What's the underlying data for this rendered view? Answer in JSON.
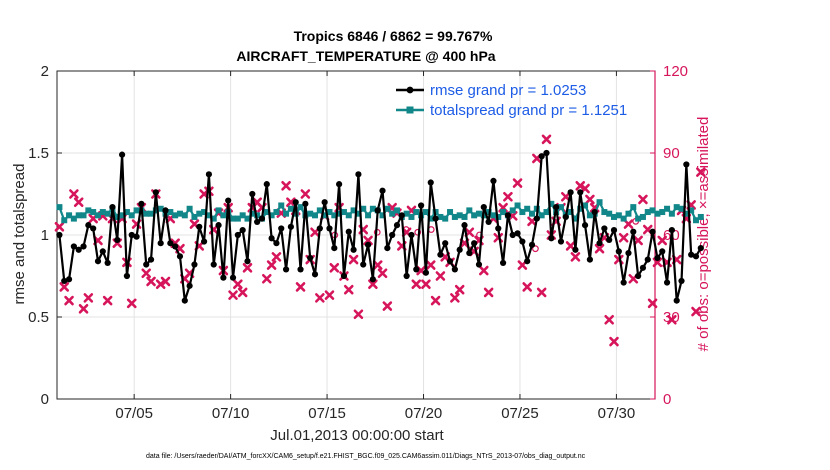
{
  "chart_data": {
    "type": "line",
    "title": "Tropics 6846 / 6862 = 99.767%",
    "subtitle": "AIRCRAFT_TEMPERATURE @ 400 hPa",
    "xlabel": "Jul.01,2013 00:00:00 start",
    "ylabel": "rmse and totalspread",
    "y2label": "# of obs: o=possible; ×=assimilated",
    "xlim": [
      1,
      32
    ],
    "ylim": [
      0,
      2
    ],
    "y2lim": [
      0,
      120
    ],
    "x_ticks": [
      5,
      10,
      15,
      20,
      25,
      30
    ],
    "x_tick_labels": [
      "07/05",
      "07/10",
      "07/15",
      "07/20",
      "07/25",
      "07/30"
    ],
    "y_ticks": [
      0,
      0.5,
      1,
      1.5,
      2
    ],
    "y_tick_labels": [
      "0",
      "0.5",
      "1",
      "1.5",
      "2"
    ],
    "y2_ticks": [
      0,
      30,
      60,
      90,
      120
    ],
    "y2_tick_labels": [
      "0",
      "30",
      "60",
      "90",
      "120"
    ],
    "grid": true,
    "legend_position": "top-right",
    "colors": {
      "rmse": "#000000",
      "spread": "#12878a",
      "obs": "#d6155b",
      "legend_text": "#1d5ce6"
    },
    "series": [
      {
        "name": "rmse grand pr = 1.0253",
        "axis": "left",
        "x_start": 1.125,
        "x_step": 0.25,
        "values": [
          1.0,
          0.72,
          0.73,
          0.93,
          0.91,
          0.93,
          1.06,
          1.04,
          0.84,
          0.9,
          0.83,
          1.17,
          0.97,
          1.49,
          0.75,
          1.0,
          0.99,
          1.19,
          0.82,
          0.85,
          1.26,
          0.95,
          1.15,
          0.95,
          0.93,
          0.87,
          0.6,
          0.69,
          0.82,
          1.05,
          0.96,
          1.37,
          0.82,
          1.06,
          0.74,
          1.21,
          0.74,
          1.0,
          1.03,
          0.84,
          1.25,
          1.08,
          1.1,
          1.31,
          0.98,
          0.95,
          1.04,
          0.79,
          1.05,
          1.2,
          0.79,
          1.19,
          0.86,
          0.76,
          1.04,
          1.2,
          1.04,
          0.92,
          1.31,
          0.75,
          1.02,
          0.91,
          1.37,
          0.82,
          0.94,
          0.73,
          1.15,
          1.27,
          0.92,
          1.0,
          1.06,
          1.12,
          0.75,
          1.0,
          0.79,
          1.18,
          0.77,
          1.32,
          1.1,
          0.88,
          0.95,
          0.84,
          0.79,
          0.91,
          1.06,
          0.89,
          0.95,
          0.82,
          1.17,
          1.08,
          1.33,
          1.04,
          0.83,
          1.12,
          1.0,
          1.01,
          0.96,
          0.84,
          0.94,
          1.1,
          1.48,
          1.5,
          0.98,
          1.17,
          0.96,
          1.11,
          1.26,
          0.91,
          1.26,
          1.06,
          0.85,
          1.14,
          0.95,
          1.04,
          0.97,
          1.03,
          0.9,
          0.71,
          0.89,
          1.02,
          0.75,
          0.8,
          0.85,
          1.02,
          0.86,
          0.9,
          0.71,
          1.03,
          0.6,
          0.72,
          1.43,
          0.88,
          0.87,
          0.92
        ]
      },
      {
        "name": "totalspread grand pr = 1.1251",
        "axis": "left",
        "x_start": 1.125,
        "x_step": 0.25,
        "values": [
          1.17,
          1.09,
          1.12,
          1.1,
          1.12,
          1.12,
          1.15,
          1.14,
          1.12,
          1.14,
          1.13,
          1.16,
          1.11,
          1.12,
          1.14,
          1.12,
          1.15,
          1.15,
          1.13,
          1.13,
          1.15,
          1.16,
          1.13,
          1.14,
          1.12,
          1.13,
          1.12,
          1.16,
          1.11,
          1.13,
          1.14,
          1.12,
          1.1,
          1.15,
          1.12,
          1.14,
          1.1,
          1.1,
          1.12,
          1.1,
          1.13,
          1.12,
          1.1,
          1.14,
          1.12,
          1.14,
          1.18,
          1.13,
          1.16,
          1.13,
          1.17,
          1.12,
          1.13,
          1.12,
          1.15,
          1.12,
          1.14,
          1.12,
          1.13,
          1.14,
          1.12,
          1.15,
          1.13,
          1.16,
          1.12,
          1.16,
          1.15,
          1.12,
          1.16,
          1.13,
          1.15,
          1.11,
          1.13,
          1.11,
          1.14,
          1.12,
          1.14,
          1.1,
          1.14,
          1.11,
          1.1,
          1.14,
          1.11,
          1.12,
          1.11,
          1.15,
          1.12,
          1.13,
          1.12,
          1.14,
          1.12,
          1.11,
          1.14,
          1.12,
          1.15,
          1.18,
          1.14,
          1.16,
          1.13,
          1.16,
          1.12,
          1.14,
          1.19,
          1.14,
          1.17,
          1.12,
          1.14,
          1.1,
          1.16,
          1.18,
          1.12,
          1.13,
          1.2,
          1.14,
          1.13,
          1.11,
          1.12,
          1.1,
          1.13,
          1.17,
          1.1,
          1.11,
          1.14,
          1.15,
          1.13,
          1.14,
          1.16,
          1.13,
          1.17,
          1.16,
          1.13,
          1.15,
          1.09,
          1.11
        ]
      }
    ],
    "obs_assimilated": {
      "name": "# of obs assimilated",
      "axis": "right",
      "x_start": 1.125,
      "x_step": 0.25,
      "values": [
        63,
        41,
        36,
        75,
        72,
        33,
        37,
        66,
        58,
        67,
        36,
        66,
        57,
        66,
        50,
        35,
        64,
        70,
        46,
        43,
        75,
        42,
        43,
        66,
        57,
        55,
        44,
        46,
        64,
        56,
        75,
        76,
        62,
        68,
        47,
        70,
        38,
        42,
        39,
        48,
        70,
        72,
        70,
        44,
        49,
        52,
        68,
        78,
        72,
        69,
        41,
        75,
        51,
        61,
        37,
        67,
        38,
        48,
        70,
        45,
        40,
        51,
        31,
        62,
        58,
        42,
        49,
        46,
        34,
        70,
        68,
        56,
        61,
        69,
        42,
        47,
        42,
        49,
        36,
        45,
        52,
        50,
        37,
        40,
        57,
        61,
        54,
        58,
        47,
        39,
        66,
        59,
        70,
        74,
        67,
        79,
        49,
        41,
        65,
        88,
        39,
        95,
        60,
        65,
        70,
        74,
        56,
        52,
        78,
        77,
        73,
        70,
        55,
        59,
        29,
        21,
        51,
        59,
        64,
        44,
        58,
        73,
        62,
        35,
        50,
        58,
        50,
        29,
        51,
        69,
        66,
        71,
        32,
        83
      ]
    },
    "obs_possible": {
      "name": "# of obs possible",
      "axis": "right",
      "x_values": [
        15.4,
        19.7,
        20.4,
        22.9,
        17.6,
        19.1,
        25.8,
        31.0
      ],
      "values": [
        60,
        61,
        62,
        60,
        61,
        62,
        55,
        65
      ]
    },
    "footer": "data file: /Users/raeder/DAI/ATM_forcXX/CAM6_setup/f.e21.FHIST_BGC.f09_025.CAM6assim.011/Diags_NTrS_2013-07/obs_diag_output.nc"
  }
}
